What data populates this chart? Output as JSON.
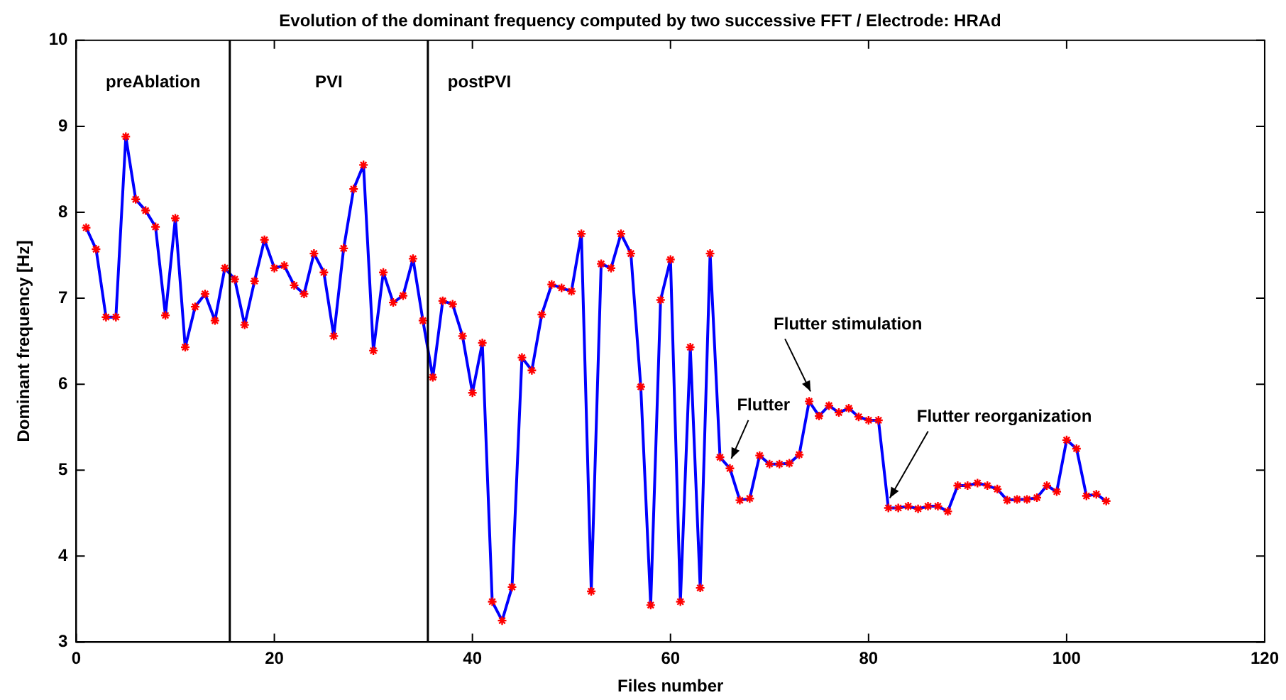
{
  "chart_data": {
    "type": "line",
    "title": "Evolution of the dominant frequency computed by two successive FFT / Electrode: HRAd",
    "xlabel": "Files number",
    "ylabel": "Dominant frequency [Hz]",
    "x": [
      1,
      2,
      3,
      4,
      5,
      6,
      7,
      8,
      9,
      10,
      11,
      12,
      13,
      14,
      15,
      16,
      17,
      18,
      19,
      20,
      21,
      22,
      23,
      24,
      25,
      26,
      27,
      28,
      29,
      30,
      31,
      32,
      33,
      34,
      35,
      36,
      37,
      38,
      39,
      40,
      41,
      42,
      43,
      44,
      45,
      46,
      47,
      48,
      49,
      50,
      51,
      52,
      53,
      54,
      55,
      56,
      57,
      58,
      59,
      60,
      61,
      62,
      63,
      64,
      65,
      66,
      67,
      68,
      69,
      70,
      71,
      72,
      73,
      74,
      75,
      76,
      77,
      78,
      79,
      80,
      81,
      82,
      83,
      84,
      85,
      86,
      87,
      88,
      89,
      90,
      91,
      92,
      93,
      94,
      95,
      96,
      97,
      98,
      99,
      100,
      101,
      102,
      103,
      104
    ],
    "series": [
      {
        "color": "#0000ff",
        "colors": [
          "#ff0000",
          "#ff0000",
          "#ff0000",
          "#ff0000",
          "#ff0000",
          "#ff0000",
          "#ff0000",
          "#ff0000",
          "#ff0000",
          "#ff0000",
          "#ff0000",
          "#ff0000",
          "#ff0000",
          "#ff0000",
          "#ff0000",
          "#ff0000",
          "#ff0000",
          "#ff0000",
          "#ff0000",
          "#ff0000",
          "#ff0000",
          "#ff0000",
          "#ff0000",
          "#ff0000",
          "#ff0000",
          "#ff0000",
          "#ff0000",
          "#ff0000",
          "#ff0000",
          "#ff0000",
          "#ff0000",
          "#ff0000",
          "#ff0000",
          "#ff0000",
          "#ff0000",
          "#ff0000",
          "#ff0000",
          "#ff0000",
          "#ff0000",
          "#ff0000",
          "#ff0000",
          "#ff0000",
          "#ff0000",
          "#ff0000",
          "#ff0000",
          "#ff0000",
          "#ff0000",
          "#ff0000",
          "#ff0000",
          "#ff0000",
          "#ff0000",
          "#ff0000",
          "#ff0000",
          "#ff0000",
          "#ff0000",
          "#ff0000",
          "#ff0000",
          "#ff0000",
          "#ff0000",
          "#ff0000",
          "#ff0000",
          "#ff0000",
          "#ff0000",
          "#ff0000",
          "#ff0000",
          "#ff0000",
          "#ff0000",
          "#ff0000",
          "#ff0000",
          "#ff0000",
          "#ff0000",
          "#ff0000",
          "#ff0000",
          "#ff0000",
          "#ff0000",
          "#ff0000",
          "#ff0000",
          "#ff0000",
          "#ff0000",
          "#ff0000",
          "#ff0000",
          "#ff0000",
          "#ff0000",
          "#ff0000",
          "#ff0000",
          "#ff0000",
          "#ff0000",
          "#ff0000",
          "#ff0000",
          "#ff0000",
          "#ff0000",
          "#ff0000",
          "#ff0000",
          "#ff0000",
          "#ff0000",
          "#ff0000",
          "#ff0000",
          "#ff0000",
          "#ff0000",
          "#ff0000",
          "#ff0000",
          "#ff0000",
          "#ff0000",
          "#ff0000"
        ],
        "values": [
          7.82,
          7.57,
          6.78,
          6.78,
          8.88,
          8.15,
          8.02,
          7.83,
          6.8,
          7.93,
          6.43,
          6.9,
          7.05,
          6.74,
          7.35,
          7.22,
          6.69,
          7.2,
          7.68,
          7.35,
          7.38,
          7.15,
          7.05,
          7.52,
          7.3,
          6.56,
          7.58,
          8.27,
          8.55,
          6.39,
          7.3,
          6.95,
          7.03,
          7.46,
          6.74,
          6.08,
          6.97,
          6.93,
          6.56,
          5.9,
          6.48,
          3.47,
          3.25,
          3.64,
          6.31,
          6.16,
          6.81,
          7.16,
          7.12,
          7.08,
          7.75,
          3.59,
          7.4,
          7.35,
          7.75,
          7.52,
          5.97,
          3.43,
          6.98,
          7.45,
          3.47,
          6.43,
          3.63,
          7.52,
          5.15,
          5.02,
          4.65,
          4.67,
          5.17,
          5.07,
          5.07,
          5.08,
          5.18,
          5.8,
          5.63,
          5.75,
          5.67,
          5.72,
          5.62,
          5.58,
          5.58,
          4.56,
          4.56,
          4.58,
          4.55,
          4.58,
          4.58,
          4.52,
          4.82,
          4.82,
          4.85,
          4.82,
          4.78,
          4.65,
          4.66,
          4.66,
          4.68,
          4.82,
          4.75,
          5.35,
          5.25,
          4.7,
          4.72,
          4.64
        ]
      }
    ],
    "xlim": [
      0,
      120
    ],
    "xticks": [
      0,
      20,
      40,
      60,
      80,
      100,
      120
    ],
    "ylim": [
      3,
      10
    ],
    "yticks": [
      3,
      4,
      5,
      6,
      7,
      8,
      9,
      10
    ],
    "grid": false,
    "legend": false,
    "marker": "cross",
    "line_style": "solid",
    "ref_lines": [
      {
        "axis": "x",
        "value": 15.5,
        "color": "#000000"
      },
      {
        "axis": "x",
        "value": 35.5,
        "color": "#000000"
      }
    ],
    "annotations": [
      "preAblation",
      "PVI",
      "postPVI",
      {
        "text": "Flutter",
        "x": 66,
        "y": 5.02
      },
      {
        "text": "Flutter stimulation",
        "x": 74,
        "y": 5.8
      },
      {
        "text": "Flutter reorganization",
        "x": 82,
        "y": 4.56
      }
    ]
  }
}
